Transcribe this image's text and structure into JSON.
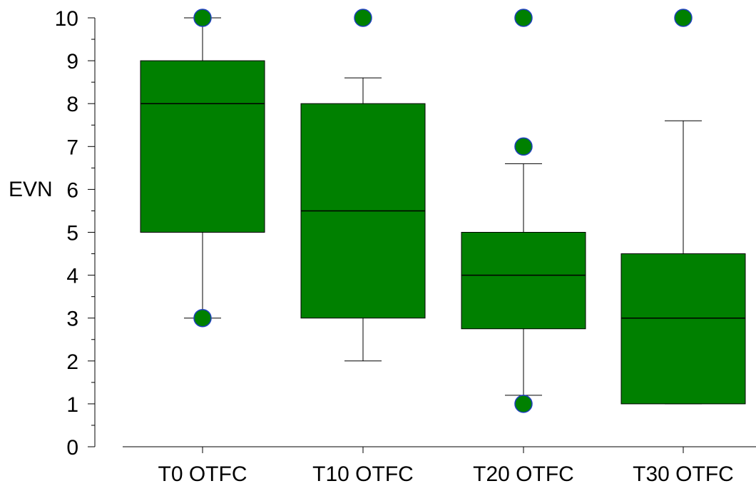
{
  "chart_data": {
    "type": "box",
    "title": "",
    "xlabel": "",
    "ylabel": "EVN",
    "ylim": [
      0,
      10
    ],
    "yticks": [
      "0",
      "1",
      "2",
      "3",
      "4",
      "5",
      "6",
      "7",
      "8",
      "9",
      "10"
    ],
    "grid": false,
    "legend": "none",
    "categories": [
      "T0 OTFC",
      "T10 OTFC",
      "T20 OTFC",
      "T30 OTFC"
    ],
    "boxes": [
      {
        "category": "T0 OTFC",
        "whisker_low": 3,
        "q1": 5,
        "median": 8,
        "q3": 9,
        "whisker_high": 10,
        "outliers": [
          10,
          3
        ]
      },
      {
        "category": "T10 OTFC",
        "whisker_low": 2,
        "q1": 3,
        "median": 5.5,
        "q3": 8,
        "whisker_high": 8.6,
        "outliers": [
          10
        ]
      },
      {
        "category": "T20 OTFC",
        "whisker_low": 1.2,
        "q1": 2.75,
        "median": 4,
        "q3": 5,
        "whisker_high": 6.6,
        "outliers": [
          10,
          7,
          1
        ]
      },
      {
        "category": "T30 OTFC",
        "whisker_low": 1,
        "q1": 1,
        "median": 3,
        "q3": 4.5,
        "whisker_high": 7.6,
        "outliers": [
          10
        ]
      }
    ],
    "colors": {
      "box_fill": "#008000",
      "box_stroke": "#000000",
      "outlier_fill": "#008000",
      "outlier_stroke": "#1f3fbf",
      "axis": "#000000"
    }
  }
}
